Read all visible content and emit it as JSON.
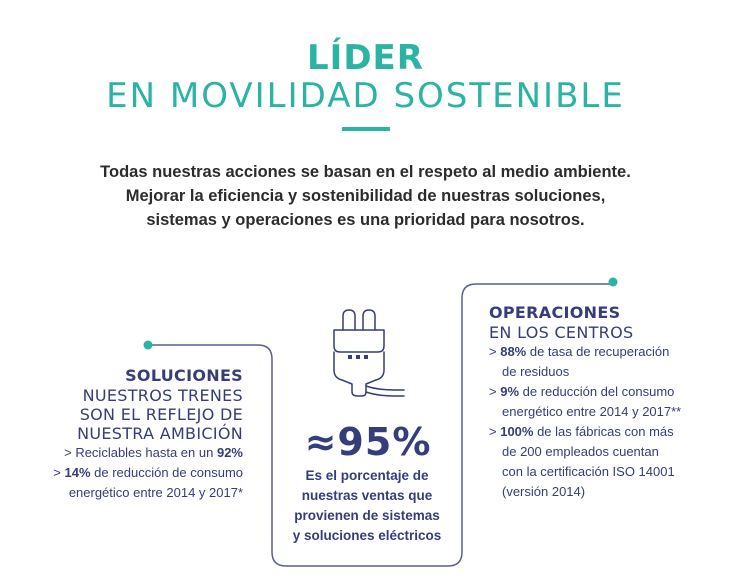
{
  "header": {
    "title_bold": "LÍDER",
    "title_light": "EN MOVILIDAD SOSTENIBLE"
  },
  "intro": {
    "line1": "Todas nuestras acciones se basan en el respeto al medio ambiente.",
    "line2": "Mejorar la eficiencia y sostenibilidad de nuestras soluciones,",
    "line3": "sistemas y operaciones es una prioridad para nosotros."
  },
  "soluciones": {
    "title": "SOLUCIONES",
    "sub1": "NUESTROS TRENES",
    "sub2": "SON EL REFLEJO DE",
    "sub3": "NUESTRA AMBICIÓN",
    "b1_prefix": "> Reciclables hasta en un ",
    "b1_value": "92%",
    "b2_prefix": "> ",
    "b2_value": "14%",
    "b2_text": " de reducción de consumo",
    "b2_line2": "energético entre 2014 y 2017*"
  },
  "center": {
    "stat": "≈95%",
    "desc1": "Es el porcentaje de",
    "desc2": "nuestras ventas que",
    "desc3": "provienen de sistemas",
    "desc4": "y soluciones eléctricos"
  },
  "operaciones": {
    "title": "OPERACIONES",
    "sub": "EN LOS CENTROS",
    "b1_prefix": "> ",
    "b1_value": "88%",
    "b1_text": " de tasa de recuperación",
    "b1_line2": "de residuos",
    "b2_prefix": "> ",
    "b2_value": "9%",
    "b2_text": " de reducción del consumo",
    "b2_line2": "energético entre 2014 y 2017**",
    "b3_prefix": "> ",
    "b3_value": "100%",
    "b3_text": " de las fábricas con más",
    "b3_line2": "de 200 empleados cuentan",
    "b3_line3": "con la certificación ISO 14001",
    "b3_line4": "(versión 2014)"
  },
  "colors": {
    "teal": "#2bb3a4",
    "navy": "#353d7a",
    "line": "#5a5f8f"
  },
  "icons": {
    "plug": "electric-plug-icon"
  }
}
